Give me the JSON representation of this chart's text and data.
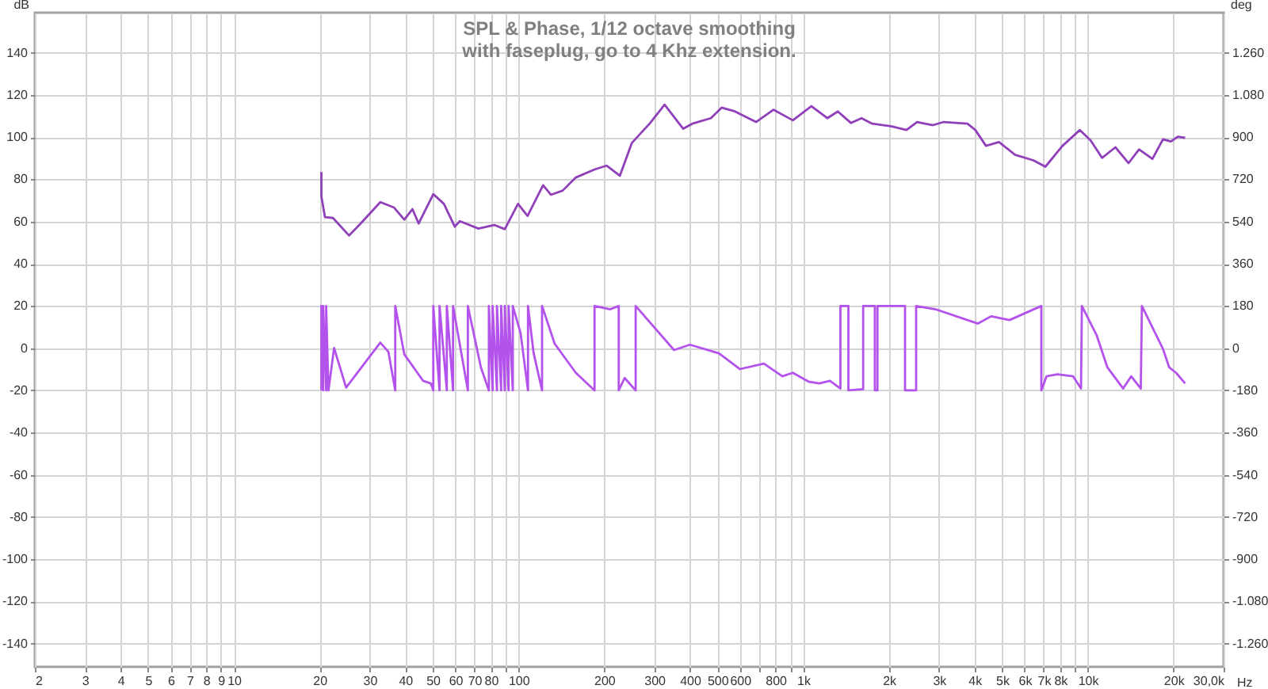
{
  "chart_data": {
    "type": "line",
    "title": "SPL & Phase, 1/12 octave smoothing\nwith faseplug, go to 4 Khz extension.",
    "xlabel": "Hz",
    "ylabel": "dB",
    "y2label": "deg",
    "log": "x",
    "grid": true,
    "legend": false,
    "marker": "none",
    "line_style": "solid",
    "xlim": [
      2,
      30000
    ],
    "xticks": [
      2,
      3,
      4,
      5,
      6,
      7,
      8,
      9,
      10,
      20,
      30,
      40,
      50,
      60,
      70,
      80,
      {
        "value": 90,
        "label": null
      },
      100,
      200,
      300,
      400,
      500,
      600,
      {
        "value": 700,
        "label": null
      },
      800,
      {
        "value": 900,
        "label": null
      },
      {
        "value": 1000,
        "label": "1k"
      },
      {
        "value": 2000,
        "label": "2k"
      },
      {
        "value": 3000,
        "label": "3k"
      },
      {
        "value": 4000,
        "label": "4k"
      },
      {
        "value": 5000,
        "label": "5k"
      },
      {
        "value": 6000,
        "label": "6k"
      },
      {
        "value": 7000,
        "label": "7k"
      },
      {
        "value": 8000,
        "label": "8k"
      },
      {
        "value": 9000,
        "label": null
      },
      {
        "value": 10000,
        "label": "10k"
      },
      {
        "value": 20000,
        "label": "20k"
      },
      {
        "value": 30000,
        "label": "30,0k"
      }
    ],
    "ylim": [
      -151,
      159
    ],
    "yticks": [
      -140,
      -120,
      -100,
      -80,
      -60,
      -40,
      -20,
      0,
      20,
      40,
      60,
      80,
      100,
      120,
      140
    ],
    "y2lim": [
      -1359,
      1431
    ],
    "y2ticks": [
      {
        "value": -1260,
        "label": "-1.260"
      },
      {
        "value": -1080,
        "label": "-1.080"
      },
      -900,
      -720,
      -540,
      -360,
      -180,
      0,
      180,
      360,
      540,
      720,
      900,
      {
        "value": 1080,
        "label": "1.080"
      },
      {
        "value": 1260,
        "label": "1.260"
      }
    ],
    "series": [
      {
        "color": "#9040b8",
        "x": [
          20.3,
          20.3,
          20.9,
          22.3,
          25.4,
          27.6,
          32.7,
          36.5,
          39.7,
          42.4,
          44.6,
          50.2,
          54.7,
          59.7,
          62.2,
          72.3,
          82.2,
          89.5,
          99.6,
          107.6,
          122,
          130,
          143,
          159,
          185,
          204,
          227,
          250,
          290,
          326,
          379,
          408,
          474,
          517,
          576,
          683,
          786,
          920,
          1069,
          1216,
          1324,
          1473,
          1603,
          1749,
          2033,
          2307,
          2513,
          2858,
          3114,
          3776,
          4027,
          4387,
          4876,
          5546,
          6442,
          7096,
          8149,
          9380,
          10230,
          11220,
          12500,
          13900,
          15140,
          16870,
          18370,
          19590,
          20700,
          21980
        ],
        "values": [
          83.5,
          72,
          62.1,
          61.7,
          53.4,
          58.4,
          69.2,
          66.7,
          60.9,
          65.9,
          59.1,
          73,
          68.4,
          57.6,
          60.2,
          56.7,
          58.4,
          56.4,
          68.4,
          62.7,
          77.2,
          72.7,
          74.7,
          80.9,
          84.7,
          86.5,
          81.7,
          97.2,
          106.7,
          115.4,
          104,
          106.4,
          109,
          114,
          112.2,
          107.2,
          113,
          108,
          114.7,
          109,
          112.2,
          106.7,
          109,
          106.4,
          105.2,
          103.4,
          107.2,
          105.7,
          107.2,
          106.4,
          103.4,
          95.9,
          97.7,
          91.7,
          89,
          86,
          95.9,
          103.4,
          98.5,
          90.2,
          95.2,
          87.7,
          94.2,
          89.7,
          99,
          98,
          100.2,
          99.7
        ]
      },
      {
        "color": "#b452ec",
        "axis": "y2",
        "x": [
          20.3,
          20.3,
          20.6,
          20.6,
          21.1,
          21.1,
          21.5,
          22.5,
          24.8,
          32.7,
          34.9,
          36.9,
          36.9,
          39.7,
          46.2,
          49.2,
          50.2,
          50.2,
          52.8,
          52.8,
          56,
          56,
          58.9,
          58.9,
          66.4,
          66.4,
          73.8,
          78.7,
          78.7,
          81.1,
          81.1,
          84,
          84,
          86.9,
          86.9,
          89.5,
          89.5,
          92.3,
          92.3,
          95.5,
          95.5,
          101.7,
          108,
          108,
          113,
          121,
          121,
          134,
          159,
          185,
          185,
          210,
          225,
          225,
          236,
          258,
          258,
          352,
          400,
          506,
          600,
          728,
          845,
          920,
          1047,
          1140,
          1242,
          1352,
          1352,
          1442,
          1442,
          1625,
          1625,
          1786,
          1786,
          1824,
          1824,
          2280,
          2280,
          2494,
          2494,
          2920,
          4112,
          4574,
          5310,
          6866,
          6866,
          7162,
          7812,
          8880,
          9465,
          9532,
          10760,
          11720,
          13310,
          14200,
          15350,
          15490,
          18370,
          19320,
          20420,
          21980
        ],
        "values": [
          -180,
          180,
          -180,
          180,
          -180,
          180,
          -180,
          1,
          -168,
          24,
          -15,
          -180,
          180,
          -26,
          -139,
          -150,
          -180,
          180,
          -180,
          180,
          -180,
          180,
          -180,
          180,
          -180,
          180,
          -82,
          -180,
          180,
          -180,
          180,
          -180,
          180,
          -180,
          180,
          -180,
          180,
          -180,
          180,
          -180,
          180,
          64,
          -180,
          180,
          -20,
          -180,
          180,
          19,
          -105,
          -180,
          180,
          166,
          180,
          -180,
          -127,
          -180,
          180,
          -8,
          15,
          -22,
          -89,
          -66,
          -120,
          -105,
          -143,
          -150,
          -139,
          -172,
          180,
          180,
          -180,
          -175,
          180,
          180,
          -180,
          -180,
          180,
          180,
          -180,
          -180,
          180,
          166,
          105,
          136,
          120,
          180,
          -180,
          -120,
          -111,
          -120,
          -172,
          180,
          53,
          -82,
          -172,
          -120,
          -172,
          180,
          -3,
          -82,
          -105,
          -150
        ]
      }
    ]
  }
}
